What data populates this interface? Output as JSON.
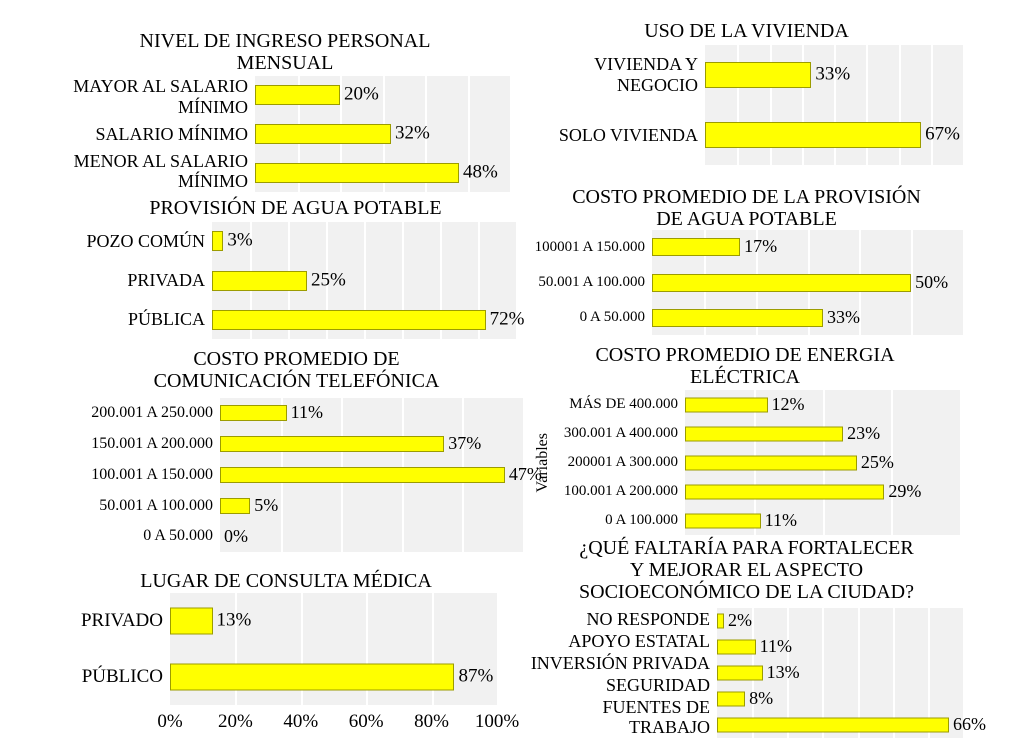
{
  "colors": {
    "bar_fill": "#FFFF00",
    "bar_border": "#9C9C00",
    "plot_background": "#F1F1F1",
    "gridline": "#FFFFFF",
    "text": "#000000",
    "page_background": "#FFFFFF"
  },
  "chart_data": [
    {
      "type": "bar",
      "orientation": "horizontal",
      "title": "NIVEL DE INGRESO PERSONAL\nMENSUAL",
      "categories": [
        "MAYOR AL SALARIO\nMÍNIMO",
        "SALARIO MÍNIMO",
        "MENOR AL SALARIO\nMÍNIMO"
      ],
      "values": [
        20,
        32,
        48
      ],
      "value_labels": [
        "20%",
        "32%",
        "48%"
      ],
      "xlim": [
        0,
        60
      ],
      "grid_step": 10,
      "grid": true,
      "legend": false
    },
    {
      "type": "bar",
      "orientation": "horizontal",
      "title": "USO DE LA VIVIENDA",
      "categories": [
        "VIVIENDA Y NEGOCIO",
        "SOLO VIVIENDA"
      ],
      "values": [
        33,
        67
      ],
      "value_labels": [
        "33%",
        "67%"
      ],
      "xlim": [
        0,
        80
      ],
      "grid_step": 10,
      "grid": true,
      "legend": false
    },
    {
      "type": "bar",
      "orientation": "horizontal",
      "title": "PROVISIÓN DE AGUA POTABLE",
      "categories": [
        "POZO COMÚN",
        "PRIVADA",
        "PÚBLICA"
      ],
      "values": [
        3,
        25,
        72
      ],
      "value_labels": [
        "3%",
        "25%",
        "72%"
      ],
      "xlim": [
        0,
        80
      ],
      "grid_step": 10,
      "grid": true,
      "legend": false
    },
    {
      "type": "bar",
      "orientation": "horizontal",
      "title": "COSTO PROMEDIO DE LA PROVISIÓN\nDE AGUA POTABLE",
      "categories": [
        "100001 A 150.000",
        "50.001 A 100.000",
        "0 A 50.000"
      ],
      "values": [
        17,
        50,
        33
      ],
      "value_labels": [
        "17%",
        "50%",
        "33%"
      ],
      "xlim": [
        0,
        60
      ],
      "grid_step": 10,
      "grid": true,
      "legend": false
    },
    {
      "type": "bar",
      "orientation": "horizontal",
      "title": "COSTO PROMEDIO DE\nCOMUNICACIÓN TELEFÓNICA",
      "categories": [
        "200.001 A 250.000",
        "150.001 A 200.000",
        "100.001 A 150.000",
        "50.001 A 100.000",
        "0 A 50.000"
      ],
      "values": [
        11,
        37,
        47,
        5,
        0
      ],
      "value_labels": [
        "11%",
        "37%",
        "47%",
        "5%",
        "0%"
      ],
      "xlim": [
        0,
        50
      ],
      "grid_step": 10,
      "grid": true,
      "legend": false
    },
    {
      "type": "bar",
      "orientation": "horizontal",
      "title": "COSTO PROMEDIO DE ENERGIA\nELÉCTRICA",
      "ylabel": "Variables",
      "categories": [
        "MÁS DE 400.000",
        "300.001 A 400.000",
        "200001 A 300.000",
        "100.001 A 200.000",
        "0 A 100.000"
      ],
      "values": [
        12,
        23,
        25,
        29,
        11
      ],
      "value_labels": [
        "12%",
        "23%",
        "25%",
        "29%",
        "11%"
      ],
      "xlim": [
        0,
        40
      ],
      "grid_step": 10,
      "grid": true,
      "legend": false
    },
    {
      "type": "bar",
      "orientation": "horizontal",
      "title": "LUGAR DE CONSULTA MÉDICA",
      "categories": [
        "PRIVADO",
        "PÚBLICO"
      ],
      "values": [
        13,
        87
      ],
      "value_labels": [
        "13%",
        "87%"
      ],
      "xlim": [
        0,
        100
      ],
      "grid_step": 20,
      "x_ticks": [
        "0%",
        "20%",
        "40%",
        "60%",
        "80%",
        "100%"
      ],
      "grid": true,
      "legend": false
    },
    {
      "type": "bar",
      "orientation": "horizontal",
      "title": "¿QUÉ FALTARÍA PARA FORTALECER\nY MEJORAR EL ASPECTO\nSOCIOECONÓMICO DE LA CIUDAD?",
      "categories": [
        "NO RESPONDE",
        "APOYO ESTATAL",
        "INVERSIÓN PRIVADA",
        "SEGURIDAD",
        "FUENTES DE TRABAJO"
      ],
      "values": [
        2,
        11,
        13,
        8,
        66
      ],
      "value_labels": [
        "2%",
        "11%",
        "13%",
        "8%",
        "66%"
      ],
      "xlim": [
        0,
        70
      ],
      "grid_step": 10,
      "grid": true,
      "legend": false
    }
  ]
}
